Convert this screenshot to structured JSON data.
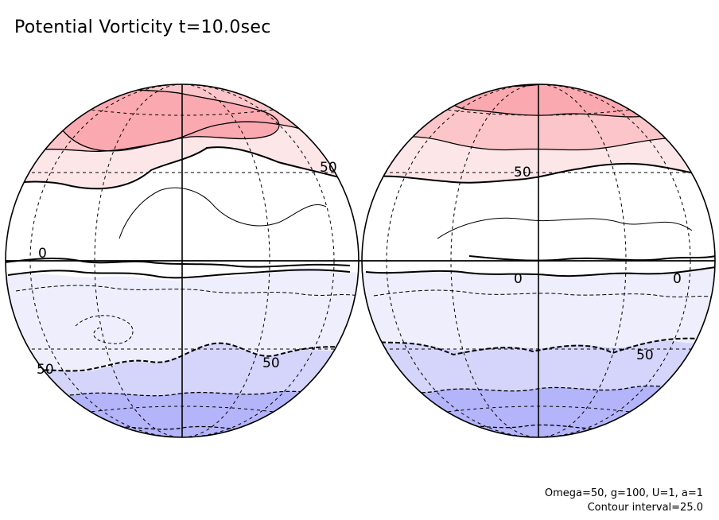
{
  "title": "Potential Vorticity t=10.0sec",
  "footer": {
    "params": "Omega=50, g=100, U=1, a=1",
    "interval": "Contour interval=25.0"
  },
  "colors": {
    "band_n100": "#fba9b0",
    "band_n75": "#fcc5c9",
    "band_n50": "#fde6e8",
    "band_0": "#ffffff",
    "band_s50": "#eeeefd",
    "band_s75": "#d5d5fb",
    "band_s100": "#b4b4fa",
    "outline": "#000000"
  },
  "chart_data": {
    "type": "contour",
    "projection": "orthographic",
    "hemispheres": [
      "left",
      "right"
    ],
    "contour_interval": 25.0,
    "contour_levels": [
      -100,
      -75,
      -50,
      -25,
      0,
      25,
      50,
      75,
      100
    ],
    "labeled_contours": [
      {
        "panel": "left",
        "text": "50"
      },
      {
        "panel": "left",
        "text": "0"
      },
      {
        "panel": "left",
        "text": "50"
      },
      {
        "panel": "left",
        "text": "50"
      },
      {
        "panel": "right",
        "text": "50"
      },
      {
        "panel": "right",
        "text": "0"
      },
      {
        "panel": "right",
        "text": "0"
      },
      {
        "panel": "right",
        "text": "50"
      }
    ],
    "grid": true
  }
}
